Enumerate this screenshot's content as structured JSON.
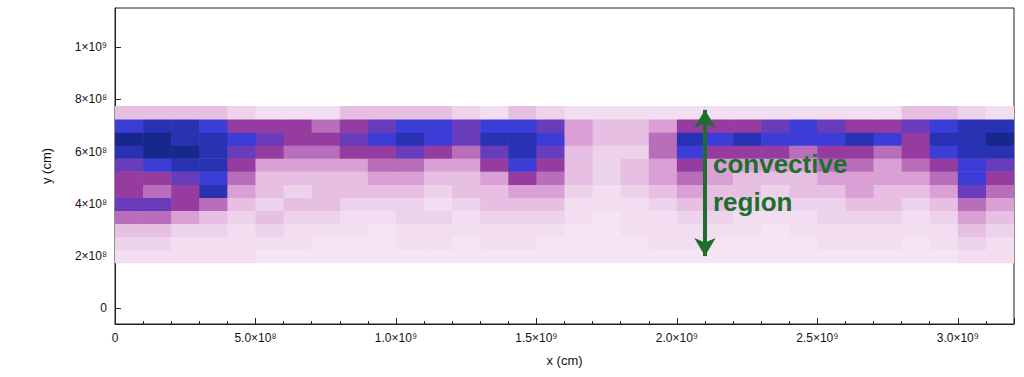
{
  "chart_data": {
    "type": "heatmap",
    "x_label": "x (cm)",
    "y_label": "y (cm)",
    "xlim": [
      0,
      3200000000
    ],
    "ylim": [
      -60000000,
      1150000000
    ],
    "xticks": [
      {
        "value": 0,
        "label": "0"
      },
      {
        "value": 500000000,
        "label": "5.0×10⁸"
      },
      {
        "value": 1000000000,
        "label": "1.0×10⁹"
      },
      {
        "value": 1500000000,
        "label": "1.5×10⁹"
      },
      {
        "value": 2000000000,
        "label": "2.0×10⁹"
      },
      {
        "value": 2500000000,
        "label": "2.5×10⁹"
      },
      {
        "value": 3000000000,
        "label": "3.0×10⁹"
      }
    ],
    "yticks": [
      {
        "value": 0,
        "label": "0"
      },
      {
        "value": 200000000,
        "label": "2×10⁸"
      },
      {
        "value": 400000000,
        "label": "4×10⁸"
      },
      {
        "value": 600000000,
        "label": "6×10⁸"
      },
      {
        "value": 800000000,
        "label": "8×10⁸"
      },
      {
        "value": 1000000000,
        "label": "1×10⁹"
      }
    ],
    "grid": false,
    "cells": {
      "x": [
        50000000,
        150000000,
        250000000,
        350000000,
        450000000,
        550000000,
        650000000,
        750000000,
        850000000,
        950000000,
        1050000000,
        1150000000,
        1250000000,
        1350000000,
        1450000000,
        1550000000,
        1650000000,
        1750000000,
        1850000000,
        1950000000,
        2050000000,
        2150000000,
        2250000000,
        2350000000,
        2450000000,
        2550000000,
        2650000000,
        2750000000,
        2850000000,
        2950000000,
        3050000000,
        3150000000
      ],
      "y": [
        200000000,
        250000000,
        300000000,
        350000000,
        400000000,
        450000000,
        500000000,
        550000000,
        600000000,
        650000000,
        700000000,
        750000000
      ],
      "values": [
        [
          1,
          1,
          1,
          1,
          1,
          0.8,
          0.8,
          0.8,
          0.8,
          0.8,
          0.8,
          0.8,
          0.8,
          0.8,
          0.8,
          0.8,
          0.8,
          0.8,
          0.8,
          0.8,
          0.8,
          0.8,
          0.8,
          0.8,
          0.8,
          0.8,
          0.8,
          0.8,
          0.8,
          0.8,
          1,
          1
        ],
        [
          1.2,
          1.2,
          1,
          1,
          1,
          1,
          1,
          0.8,
          0.8,
          0.8,
          1,
          1,
          0.8,
          1,
          1,
          0.8,
          0.8,
          0.8,
          0.8,
          1,
          1,
          0.8,
          0.8,
          0.8,
          0.8,
          1,
          1,
          1,
          0.8,
          1,
          1.2,
          1
        ],
        [
          1.5,
          1.5,
          1.2,
          1.2,
          1,
          1.2,
          1,
          1,
          1,
          0.8,
          1,
          1,
          1,
          1,
          1,
          1,
          0.8,
          0.8,
          1,
          1,
          1,
          1,
          1,
          0.8,
          1,
          1,
          1,
          1,
          1,
          1,
          1.5,
          1.2
        ],
        [
          2.5,
          2.5,
          2,
          1.5,
          1.2,
          1.5,
          1.2,
          1.2,
          1,
          1,
          1.2,
          1.2,
          1,
          1.2,
          1.2,
          1.2,
          1,
          0.8,
          1,
          1,
          1.2,
          1.2,
          1,
          1,
          1,
          1.2,
          1.2,
          1.2,
          1,
          1.2,
          2,
          1.5
        ],
        [
          3.5,
          3.5,
          3,
          2.5,
          1.5,
          1.2,
          1.5,
          1.5,
          1.2,
          1.2,
          1.2,
          1,
          1.2,
          1.5,
          1.5,
          1.5,
          1,
          1,
          1,
          1.2,
          1.5,
          1.5,
          1.2,
          1.2,
          1.2,
          1.2,
          1.5,
          1.5,
          1.2,
          1.5,
          2.5,
          2
        ],
        [
          3,
          2.5,
          3,
          4.5,
          2,
          1.5,
          1.2,
          1.5,
          1.5,
          1.5,
          1.5,
          1.2,
          1.5,
          1.5,
          2,
          2,
          1.2,
          1,
          1.2,
          1.5,
          2,
          1.5,
          1.5,
          1.2,
          1.5,
          1.5,
          2,
          1.5,
          1.5,
          2,
          3.5,
          2.5
        ],
        [
          3,
          3,
          3.5,
          4,
          2.5,
          1.5,
          1.5,
          1.5,
          1.5,
          2,
          2,
          1.5,
          1.5,
          2,
          3,
          2.5,
          1.5,
          1.2,
          1.5,
          2,
          2.5,
          2,
          1.5,
          1.5,
          1.5,
          2,
          2,
          2,
          2,
          2.5,
          4,
          3
        ],
        [
          3.5,
          4,
          4.5,
          4.5,
          3,
          2,
          2,
          2,
          2,
          2.5,
          2.5,
          2,
          2,
          3,
          4,
          3,
          1.5,
          1.2,
          1.5,
          2,
          3,
          2,
          2,
          2,
          2,
          2.5,
          2.5,
          2,
          2.5,
          3,
          4,
          3.5
        ],
        [
          4.5,
          5,
          5,
          4.5,
          3.5,
          3,
          2.5,
          2.5,
          3,
          3,
          3.5,
          3,
          2.5,
          3.5,
          4.5,
          3.5,
          1.5,
          1.2,
          1.2,
          2.5,
          4,
          3,
          3,
          3,
          2.5,
          3,
          3,
          2.5,
          3,
          4,
          4.5,
          4.5
        ],
        [
          5,
          5,
          4.5,
          4.5,
          4,
          3.5,
          3,
          3,
          3.5,
          4,
          4.5,
          4,
          3.5,
          4.5,
          4.5,
          4,
          2,
          1.5,
          1.5,
          2.5,
          4.5,
          4,
          4.5,
          4,
          4,
          4,
          4.5,
          4,
          3,
          4.5,
          4.5,
          5
        ],
        [
          4,
          4.5,
          4.5,
          4,
          3,
          3,
          3,
          2.5,
          3,
          3.5,
          4,
          4,
          3.5,
          4,
          4,
          3.5,
          2,
          1.5,
          1.5,
          2,
          3,
          3,
          3,
          3.5,
          4,
          3.5,
          3,
          3,
          3.5,
          4,
          4.5,
          4.5
        ],
        [
          1.5,
          1.5,
          1.5,
          1.5,
          1.2,
          1,
          1,
          1,
          1.5,
          1.5,
          1.5,
          1.5,
          1.2,
          1,
          1.5,
          1.2,
          1,
          1,
          1,
          1,
          1,
          1,
          1,
          1,
          1,
          1,
          1,
          1,
          1.5,
          1.5,
          1.2,
          1
        ]
      ]
    },
    "annotation": {
      "text": "convective region",
      "x": 2100000000,
      "y": [
        200000000,
        760000000
      ],
      "color": "#1e6e2c"
    }
  }
}
